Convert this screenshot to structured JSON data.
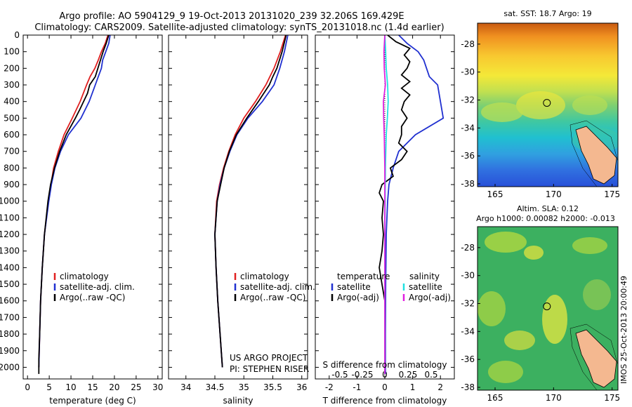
{
  "header": {
    "line1": "Argo profile: AO 5904129_9 19-Oct-2013 20131020_239 32.206S 169.429E",
    "line2": "Climatology: CARS2009. Satellite-adjusted climatology: synTS_20131018.nc (1.4d earlier)"
  },
  "chart_data": [
    {
      "type": "line",
      "id": "temperature",
      "xlabel": "temperature (deg C)",
      "ylabel": "",
      "xlim": [
        -1,
        31
      ],
      "ylim": [
        2070,
        0
      ],
      "y_reversed": true,
      "xticks": [
        0,
        5,
        10,
        15,
        20,
        25,
        30
      ],
      "yticks": [
        0,
        100,
        200,
        300,
        400,
        500,
        600,
        700,
        800,
        900,
        1000,
        1100,
        1200,
        1300,
        1400,
        1500,
        1600,
        1700,
        1800,
        1900,
        2000
      ],
      "legend": {
        "placement": "lower-center",
        "entries": [
          "climatology",
          "satellite-adj. clim.",
          "Argo(..raw -QC)"
        ]
      },
      "series": [
        {
          "name": "climatology",
          "color": "#e02020",
          "depth": [
            0,
            50,
            100,
            150,
            200,
            250,
            300,
            400,
            500,
            600,
            700,
            800,
            900,
            1000,
            1200,
            1400,
            1600,
            1800,
            2000
          ],
          "values": [
            18.5,
            17.9,
            17.0,
            16.3,
            15.5,
            14.4,
            13.6,
            12.1,
            10.3,
            8.4,
            7.1,
            6.0,
            5.4,
            4.8,
            3.9,
            3.4,
            3.0,
            2.8,
            2.6
          ]
        },
        {
          "name": "satellite-adj. clim.",
          "color": "#2030d0",
          "depth": [
            0,
            50,
            100,
            150,
            200,
            250,
            300,
            400,
            500,
            600,
            700,
            800,
            900,
            1000,
            1200,
            1400,
            1600,
            1800,
            2000
          ],
          "values": [
            19.0,
            18.7,
            18.0,
            17.3,
            17.0,
            16.3,
            15.6,
            14.2,
            12.3,
            9.4,
            7.6,
            6.3,
            5.5,
            4.9,
            3.9,
            3.4,
            3.0,
            2.8,
            2.6
          ]
        },
        {
          "name": "Argo(..raw -QC)",
          "color": "#000000",
          "depth": [
            0,
            50,
            100,
            150,
            200,
            250,
            300,
            350,
            400,
            450,
            500,
            600,
            700,
            800,
            900,
            1000,
            1200,
            1400,
            1600,
            1800,
            1950,
            2040
          ],
          "values": [
            18.7,
            18.1,
            17.4,
            16.8,
            16.2,
            15.6,
            14.3,
            13.8,
            12.9,
            12.0,
            11.0,
            8.9,
            7.4,
            6.2,
            5.3,
            4.7,
            3.9,
            3.4,
            3.0,
            2.8,
            2.6,
            2.6
          ]
        }
      ]
    },
    {
      "type": "line",
      "id": "salinity",
      "xlabel": "salinity",
      "xlim": [
        33.7,
        36.1
      ],
      "ylim": [
        2070,
        0
      ],
      "y_reversed": true,
      "xticks": [
        34,
        34.5,
        35,
        35.5,
        36
      ],
      "legend": {
        "placement": "lower-center",
        "entries": [
          "climatology",
          "satellite-adj. clim.",
          "Argo(..raw -QC)"
        ]
      },
      "annotations": [
        "US ARGO PROJECT",
        "PI: STEPHEN RISER"
      ],
      "series": [
        {
          "name": "climatology",
          "color": "#e02020",
          "depth": [
            0,
            100,
            200,
            300,
            400,
            500,
            600,
            700,
            800,
            900,
            1000,
            1200,
            1400,
            1600,
            1800,
            2000
          ],
          "values": [
            35.72,
            35.63,
            35.52,
            35.38,
            35.2,
            35.0,
            34.85,
            34.74,
            34.65,
            34.58,
            34.53,
            34.5,
            34.52,
            34.55,
            34.59,
            34.63
          ]
        },
        {
          "name": "satellite-adj. clim.",
          "color": "#2030d0",
          "depth": [
            0,
            100,
            200,
            300,
            400,
            500,
            600,
            700,
            800,
            900,
            1000,
            1200,
            1400,
            1600,
            1800,
            2000
          ],
          "values": [
            35.76,
            35.7,
            35.62,
            35.52,
            35.32,
            35.07,
            34.88,
            34.76,
            34.66,
            34.59,
            34.54,
            34.5,
            34.52,
            34.55,
            34.59,
            34.63
          ]
        },
        {
          "name": "Argo(..raw -QC)",
          "color": "#000000",
          "depth": [
            0,
            100,
            200,
            250,
            300,
            400,
            500,
            600,
            700,
            800,
            900,
            1000,
            1200,
            1400,
            1600,
            1800,
            2000
          ],
          "values": [
            35.73,
            35.66,
            35.57,
            35.5,
            35.44,
            35.25,
            35.05,
            34.87,
            34.75,
            34.66,
            34.6,
            34.54,
            34.5,
            34.52,
            34.55,
            34.59,
            34.63
          ]
        }
      ]
    },
    {
      "type": "line",
      "id": "difference",
      "xlabel": "T difference from climatology",
      "xlabel2": "S difference from climatology",
      "xlim": [
        -2.5,
        2.5
      ],
      "ylim": [
        2070,
        0
      ],
      "y_reversed": true,
      "xticks_T": [
        -2,
        -1,
        0,
        1,
        2
      ],
      "xticks_S": [
        "-0.5",
        "-0.25",
        "0",
        "0.25",
        "0.5"
      ],
      "legend": {
        "placement": "lower-center",
        "groups": [
          {
            "title": "temperature",
            "entries": [
              "satellite",
              "Argo(-adj)"
            ]
          },
          {
            "title": "salinity",
            "entries": [
              "satellite",
              "Argo(-adj)"
            ]
          }
        ]
      },
      "series": [
        {
          "name": "temperature satellite",
          "color": "#2030d0",
          "depth": [
            0,
            50,
            100,
            150,
            200,
            250,
            300,
            400,
            500,
            600,
            700,
            800,
            900,
            1000,
            1200,
            1500,
            1800,
            2040
          ],
          "values": [
            0.5,
            0.8,
            1.2,
            1.4,
            1.5,
            1.6,
            1.9,
            2.0,
            2.1,
            1.1,
            0.5,
            0.3,
            0.15,
            0.1,
            0.05,
            0.03,
            0.02,
            0.02
          ]
        },
        {
          "name": "temperature Argo(-adj)",
          "color": "#000000",
          "depth": [
            0,
            40,
            80,
            120,
            160,
            200,
            240,
            280,
            320,
            360,
            400,
            450,
            500,
            550,
            600,
            650,
            700,
            750,
            800,
            850,
            900,
            950,
            1000,
            1100,
            1200,
            1300,
            1400,
            1500,
            1600,
            1700,
            1800,
            1900,
            2040
          ],
          "values": [
            0.1,
            0.4,
            0.9,
            0.7,
            0.9,
            0.8,
            0.6,
            0.9,
            0.6,
            0.9,
            0.7,
            0.6,
            0.8,
            0.6,
            0.6,
            0.5,
            0.8,
            0.6,
            0.2,
            0.3,
            -0.1,
            -0.2,
            -0.05,
            -0.1,
            -0.05,
            -0.1,
            -0.2,
            -0.1,
            0.0,
            0.0,
            0.0,
            0.0,
            0.0
          ]
        },
        {
          "name": "salinity satellite",
          "color": "#20e0e0",
          "depth": [
            0,
            100,
            200,
            300,
            400,
            500,
            600,
            800,
            1000,
            1200,
            1500,
            1800,
            2040
          ],
          "values": [
            0.0,
            0.03,
            0.05,
            0.1,
            0.12,
            0.09,
            0.05,
            0.02,
            0.01,
            0.0,
            0.0,
            0.0,
            0.0
          ]
        },
        {
          "name": "salinity Argo(-adj)",
          "color": "#e020e0",
          "depth": [
            0,
            100,
            200,
            300,
            400,
            500,
            600,
            800,
            1000,
            1200,
            1500,
            1800,
            2040
          ],
          "values": [
            0.0,
            -0.03,
            -0.02,
            0.02,
            -0.05,
            -0.04,
            -0.02,
            0.0,
            0.0,
            0.0,
            0.0,
            0.0,
            0.0
          ]
        }
      ]
    },
    {
      "type": "heatmap",
      "id": "sst-map",
      "title": "sat. SST: 18.7 Argo: 19",
      "xlim": [
        163.5,
        175.5
      ],
      "ylim": [
        -38.2,
        -26.5
      ],
      "xticks": [
        165,
        170,
        175
      ],
      "yticks": [
        -28,
        -30,
        -32,
        -34,
        -36,
        -38
      ],
      "colormap": "jet",
      "float_position": {
        "lon": 169.429,
        "lat": -32.206
      }
    },
    {
      "type": "heatmap",
      "id": "sla-map",
      "title": "Altim. SLA: 0.12",
      "subtitle": "Argo h1000: 0.00082 h2000: -0.013",
      "xlim": [
        163.5,
        175.5
      ],
      "ylim": [
        -38.2,
        -26.5
      ],
      "xticks": [
        165,
        170,
        175
      ],
      "yticks": [
        -28,
        -30,
        -32,
        -34,
        -36,
        -38
      ],
      "colormap": "green-yellow",
      "float_position": {
        "lon": 169.429,
        "lat": -32.206
      }
    }
  ],
  "side_label": "IMOS 25-Oct-2013 20:00:49"
}
